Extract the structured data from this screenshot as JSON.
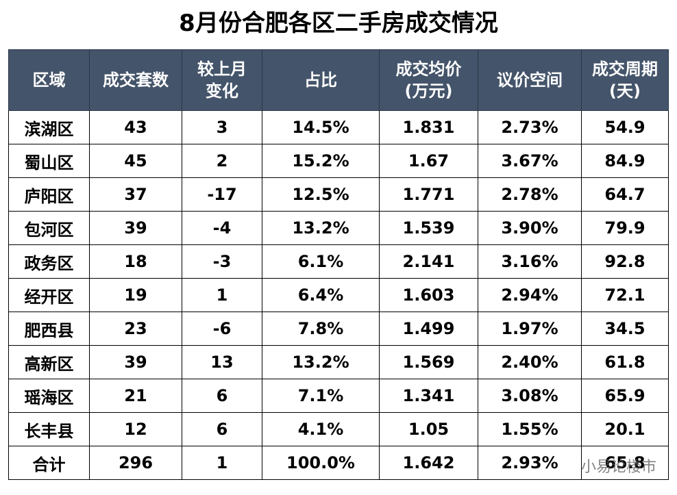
{
  "title": "8月份合肥各区二手房成交情况",
  "table": {
    "header": [
      "区域",
      "成交套数",
      "较上月\n变化",
      "占比",
      "成交均价\n(万元)",
      "议价空间",
      "成交周期\n(天)"
    ],
    "rows": [
      [
        "滨湖区",
        "43",
        "3",
        "14.5%",
        "1.831",
        "2.73%",
        "54.9"
      ],
      [
        "蜀山区",
        "45",
        "2",
        "15.2%",
        "1.67",
        "3.67%",
        "84.9"
      ],
      [
        "庐阳区",
        "37",
        "-17",
        "12.5%",
        "1.771",
        "2.78%",
        "64.7"
      ],
      [
        "包河区",
        "39",
        "-4",
        "13.2%",
        "1.539",
        "3.90%",
        "79.9"
      ],
      [
        "政务区",
        "18",
        "-3",
        "6.1%",
        "2.141",
        "3.16%",
        "92.8"
      ],
      [
        "经开区",
        "19",
        "1",
        "6.4%",
        "1.603",
        "2.94%",
        "72.1"
      ],
      [
        "肥西县",
        "23",
        "-6",
        "7.8%",
        "1.499",
        "1.97%",
        "34.5"
      ],
      [
        "高新区",
        "39",
        "13",
        "13.2%",
        "1.569",
        "2.40%",
        "61.8"
      ],
      [
        "瑶海区",
        "21",
        "6",
        "7.1%",
        "1.341",
        "3.08%",
        "65.9"
      ],
      [
        "长丰县",
        "12",
        "6",
        "4.1%",
        "1.05",
        "1.55%",
        "20.1"
      ],
      [
        "合计",
        "296",
        "1",
        "100.0%",
        "1.642",
        "2.93%",
        "65.8"
      ]
    ]
  },
  "watermark": "小易论楼市"
}
